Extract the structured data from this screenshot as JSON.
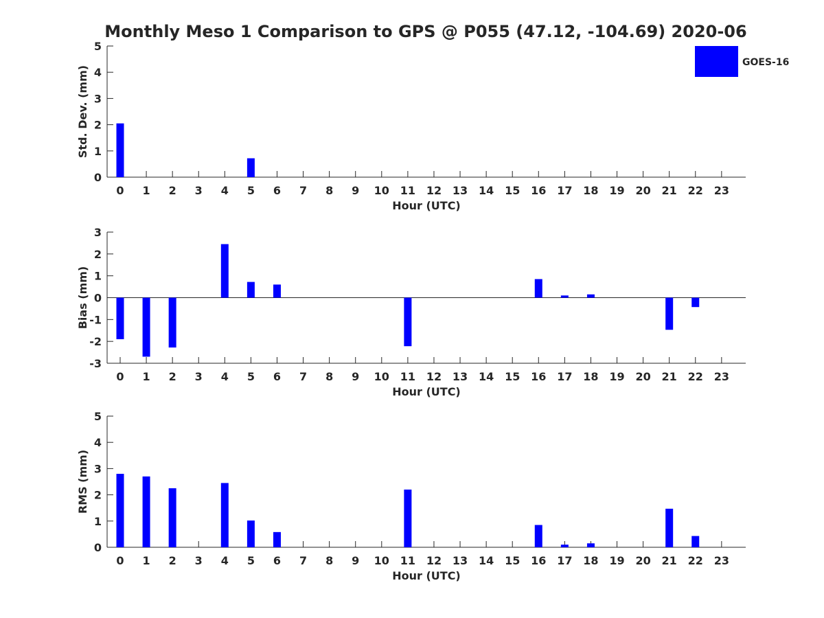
{
  "chart_data": {
    "title": "Monthly Meso 1 Comparison to GPS @ P055 (47.12, -104.69) 2020-06",
    "type": "bar",
    "legend": {
      "entries": [
        "GOES-16"
      ],
      "placement": "top-right, outside"
    },
    "colors": {
      "series": "#0000ff",
      "axis": "#262626"
    },
    "panels": [
      {
        "type": "bar",
        "xlabel": "Hour (UTC)",
        "ylabel": "Std. Dev. (mm)",
        "ylim": [
          0,
          5
        ],
        "yticks": [
          "0",
          "1",
          "2",
          "3",
          "4",
          "5"
        ],
        "grid": false,
        "categories": [
          "0",
          "1",
          "2",
          "3",
          "4",
          "5",
          "6",
          "7",
          "8",
          "9",
          "10",
          "11",
          "12",
          "13",
          "14",
          "15",
          "16",
          "17",
          "18",
          "19",
          "20",
          "21",
          "22",
          "23"
        ],
        "series": [
          {
            "name": "GOES-16",
            "values": [
              2.05,
              null,
              null,
              null,
              null,
              0.72,
              null,
              null,
              null,
              null,
              null,
              null,
              null,
              null,
              null,
              null,
              null,
              null,
              null,
              null,
              null,
              null,
              null,
              null
            ]
          }
        ]
      },
      {
        "type": "bar",
        "xlabel": "Hour (UTC)",
        "ylabel": "Bias (mm)",
        "ylim": [
          -3,
          3
        ],
        "yticks": [
          "-3",
          "-2",
          "-1",
          "0",
          "1",
          "2",
          "3"
        ],
        "grid": false,
        "zero_line": true,
        "categories": [
          "0",
          "1",
          "2",
          "3",
          "4",
          "5",
          "6",
          "7",
          "8",
          "9",
          "10",
          "11",
          "12",
          "13",
          "14",
          "15",
          "16",
          "17",
          "18",
          "19",
          "20",
          "21",
          "22",
          "23"
        ],
        "series": [
          {
            "name": "GOES-16",
            "values": [
              -1.9,
              -2.7,
              -2.28,
              null,
              2.45,
              0.72,
              0.6,
              null,
              null,
              null,
              null,
              -2.22,
              null,
              null,
              null,
              null,
              0.85,
              0.1,
              0.15,
              null,
              null,
              -1.47,
              -0.43,
              null
            ]
          }
        ]
      },
      {
        "type": "bar",
        "xlabel": "Hour (UTC)",
        "ylabel": "RMS (mm)",
        "ylim": [
          0,
          5
        ],
        "yticks": [
          "0",
          "1",
          "2",
          "3",
          "4",
          "5"
        ],
        "grid": false,
        "categories": [
          "0",
          "1",
          "2",
          "3",
          "4",
          "5",
          "6",
          "7",
          "8",
          "9",
          "10",
          "11",
          "12",
          "13",
          "14",
          "15",
          "16",
          "17",
          "18",
          "19",
          "20",
          "21",
          "22",
          "23"
        ],
        "series": [
          {
            "name": "GOES-16",
            "values": [
              2.8,
              2.7,
              2.25,
              null,
              2.45,
              1.02,
              0.58,
              null,
              null,
              null,
              null,
              2.2,
              null,
              null,
              null,
              null,
              0.85,
              0.1,
              0.15,
              null,
              null,
              1.47,
              0.43,
              null
            ]
          }
        ]
      }
    ]
  }
}
